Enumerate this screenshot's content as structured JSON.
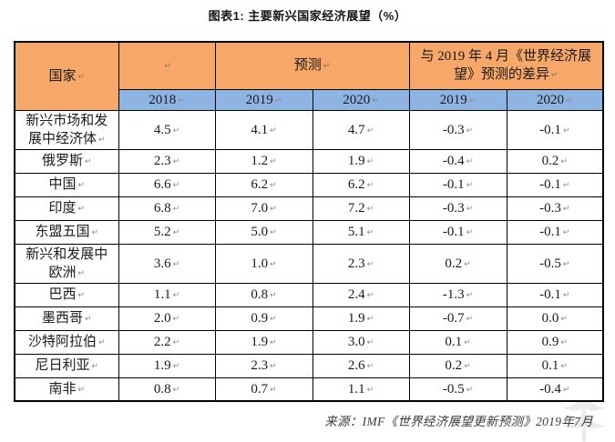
{
  "page": {
    "title": "图表1: 主要新兴国家经济展望（%）",
    "source": "来源：IMF《世界经济展望更新预测》2019年7月"
  },
  "colors": {
    "header_orange": "#F7A767",
    "header_blue": "#8DB4E2",
    "border": "#000000"
  },
  "icons": {
    "cell_end_mark": "↵",
    "watermark": "eo-logo-watermark"
  },
  "table": {
    "country_header": "国家",
    "group_headers": {
      "blank": "",
      "forecast": "预测",
      "diff": "与 2019 年 4 月《世界经济展\n望》预测的差异"
    },
    "year_headers": [
      "2018",
      "2019",
      "2020",
      "2019",
      "2020"
    ],
    "cell_mark": "↵",
    "rows": [
      {
        "country": "新兴市场和发\n展中经济体",
        "values": [
          "4.5",
          "4.1",
          "4.7",
          "-0.3",
          "-0.1"
        ]
      },
      {
        "country": "俄罗斯",
        "values": [
          "2.3",
          "1.2",
          "1.9",
          "-0.4",
          "0.2"
        ]
      },
      {
        "country": "中国",
        "values": [
          "6.6",
          "6.2",
          "6.2",
          "-0.1",
          "-0.1"
        ]
      },
      {
        "country": "印度",
        "values": [
          "6.8",
          "7.0",
          "7.2",
          "-0.3",
          "-0.3"
        ]
      },
      {
        "country": "东盟五国",
        "values": [
          "5.2",
          "5.0",
          "5.1",
          "-0.1",
          "-0.1"
        ]
      },
      {
        "country": "新兴和发展中\n欧洲",
        "values": [
          "3.6",
          "1.0",
          "2.3",
          "0.2",
          "-0.5"
        ]
      },
      {
        "country": "巴西",
        "values": [
          "1.1",
          "0.8",
          "2.4",
          "-1.3",
          "-0.1"
        ]
      },
      {
        "country": "墨西哥",
        "values": [
          "2.0",
          "0.9",
          "1.9",
          "-0.7",
          "0.0"
        ]
      },
      {
        "country": "沙特阿拉伯",
        "values": [
          "2.2",
          "1.9",
          "3.0",
          "0.1",
          "0.9"
        ]
      },
      {
        "country": "尼日利亚",
        "values": [
          "1.9",
          "2.3",
          "2.6",
          "0.2",
          "0.1"
        ]
      },
      {
        "country": "南非",
        "values": [
          "0.8",
          "0.7",
          "1.1",
          "-0.5",
          "-0.4"
        ]
      }
    ]
  },
  "chart_data": {
    "type": "table",
    "title": "图表1: 主要新兴国家经济展望（%）",
    "column_groups": [
      "国家",
      "",
      "预测",
      "与 2019 年 4 月《世界经济展望》预测的差异"
    ],
    "columns": [
      "国家",
      "2018",
      "2019（预测）",
      "2020（预测）",
      "2019（与2019年4月预测的差异）",
      "2020（与2019年4月预测的差异）"
    ],
    "rows": [
      [
        "新兴市场和发展中经济体",
        4.5,
        4.1,
        4.7,
        -0.3,
        -0.1
      ],
      [
        "俄罗斯",
        2.3,
        1.2,
        1.9,
        -0.4,
        0.2
      ],
      [
        "中国",
        6.6,
        6.2,
        6.2,
        -0.1,
        -0.1
      ],
      [
        "印度",
        6.8,
        7.0,
        7.2,
        -0.3,
        -0.3
      ],
      [
        "东盟五国",
        5.2,
        5.0,
        5.1,
        -0.1,
        -0.1
      ],
      [
        "新兴和发展中欧洲",
        3.6,
        1.0,
        2.3,
        0.2,
        -0.5
      ],
      [
        "巴西",
        1.1,
        0.8,
        2.4,
        -1.3,
        -0.1
      ],
      [
        "墨西哥",
        2.0,
        0.9,
        1.9,
        -0.7,
        0.0
      ],
      [
        "沙特阿拉伯",
        2.2,
        1.9,
        3.0,
        0.1,
        0.9
      ],
      [
        "尼日利亚",
        1.9,
        2.3,
        2.6,
        0.2,
        0.1
      ],
      [
        "南非",
        0.8,
        0.7,
        1.1,
        -0.5,
        -0.4
      ]
    ],
    "source": "来源：IMF《世界经济展望更新预测》2019年7月"
  }
}
